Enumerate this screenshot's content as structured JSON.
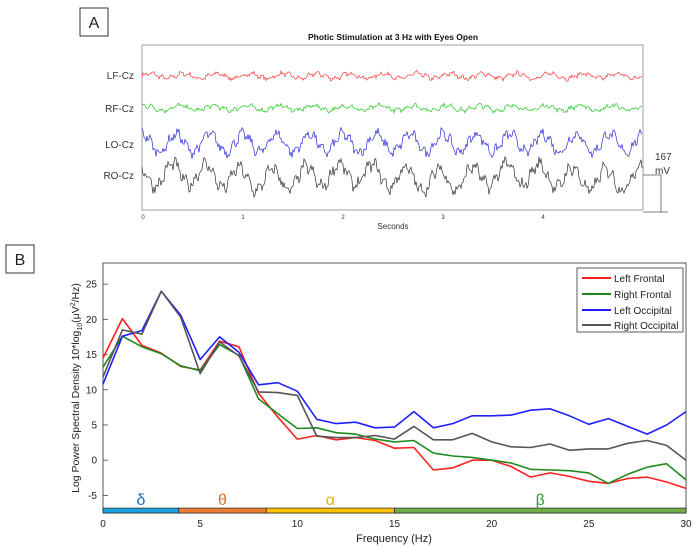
{
  "panel_a": {
    "label": "A",
    "title": "Photic Stimulation at 3 Hz with Eyes Open",
    "channels": [
      {
        "name": "LF-Cz",
        "color": "#ff3b3b"
      },
      {
        "name": "RF-Cz",
        "color": "#22cc22"
      },
      {
        "name": "LO-Cz",
        "color": "#2b2bdd"
      },
      {
        "name": "RO-Cz",
        "color": "#333333"
      }
    ],
    "x_ticks": [
      "0",
      "1",
      "2",
      "3",
      "4"
    ],
    "xlabel": "Seconds",
    "scale_value": "167",
    "scale_unit": "mV"
  },
  "panel_b": {
    "label": "B",
    "bands": [
      {
        "symbol": "δ",
        "from": 0,
        "to": 3.9,
        "color": "#1aa3e0",
        "text_color": "#1a6fc4"
      },
      {
        "symbol": "θ",
        "from": 3.9,
        "to": 8.4,
        "color": "#ed7d31",
        "text_color": "#e07020"
      },
      {
        "symbol": "α",
        "from": 8.4,
        "to": 15,
        "color": "#ffc000",
        "text_color": "#f0b000"
      },
      {
        "symbol": "β",
        "from": 15,
        "to": 30,
        "color": "#70ad47",
        "text_color": "#2e9e3e"
      }
    ]
  },
  "chart_data": {
    "type": "line",
    "xlabel": "Frequency (Hz)",
    "ylabel_main": "Log Power Spectral Density 10*log",
    "ylabel_sub": "10",
    "ylabel_tail": "(μV",
    "ylabel_sup": "2",
    "ylabel_end": "/Hz)",
    "xlim": [
      0,
      30
    ],
    "ylim": [
      -7.5,
      28
    ],
    "x_ticks": [
      0,
      5,
      10,
      15,
      20,
      25,
      30
    ],
    "y_ticks": [
      -5,
      0,
      5,
      10,
      15,
      20,
      25
    ],
    "legend_position": "top-right",
    "x": [
      0,
      1,
      2,
      3,
      4,
      5,
      6,
      7,
      8,
      9,
      10,
      11,
      12,
      13,
      14,
      15,
      16,
      17,
      18,
      19,
      20,
      21,
      22,
      23,
      24,
      25,
      26,
      27,
      28,
      29,
      30
    ],
    "series": [
      {
        "name": "Left Frontal",
        "color": "#ff2020",
        "values": [
          14.5,
          20.1,
          16.3,
          15.2,
          13.3,
          12.8,
          16.9,
          16.1,
          9.5,
          6.1,
          3.0,
          3.5,
          2.9,
          3.2,
          2.8,
          1.7,
          1.8,
          -1.4,
          -1.1,
          0.0,
          0.0,
          -0.9,
          -2.4,
          -1.8,
          -2.3,
          -3.0,
          -3.3,
          -2.6,
          -2.4,
          -3.1,
          -4.0
        ]
      },
      {
        "name": "Right Frontal",
        "color": "#1f8a1f",
        "values": [
          13.2,
          17.6,
          16.1,
          15.1,
          13.4,
          12.7,
          16.4,
          14.9,
          8.7,
          6.6,
          4.5,
          4.6,
          3.9,
          3.7,
          3.0,
          2.6,
          2.8,
          1.0,
          0.6,
          0.4,
          0.0,
          -0.4,
          -1.3,
          -1.4,
          -1.5,
          -1.8,
          -3.3,
          -2.0,
          -1.0,
          -0.5,
          -2.8
        ]
      },
      {
        "name": "Left Occipital",
        "color": "#1f1fff",
        "values": [
          10.8,
          17.6,
          18.4,
          24.0,
          20.6,
          14.3,
          17.5,
          15.3,
          10.7,
          11.0,
          9.8,
          5.8,
          5.2,
          5.4,
          4.6,
          4.7,
          6.9,
          4.6,
          5.2,
          6.3,
          6.3,
          6.4,
          7.1,
          7.3,
          6.3,
          5.1,
          5.9,
          4.8,
          3.7,
          5.0,
          6.9
        ]
      },
      {
        "name": "Right Occipital",
        "color": "#555555",
        "values": [
          11.8,
          18.5,
          17.9,
          24.0,
          20.3,
          12.3,
          16.8,
          14.8,
          9.7,
          9.6,
          9.2,
          3.4,
          3.2,
          3.2,
          3.5,
          3.0,
          4.8,
          2.9,
          2.9,
          3.8,
          2.6,
          1.9,
          1.8,
          2.3,
          1.4,
          1.6,
          1.6,
          2.4,
          2.8,
          2.1,
          0.0
        ]
      }
    ]
  }
}
